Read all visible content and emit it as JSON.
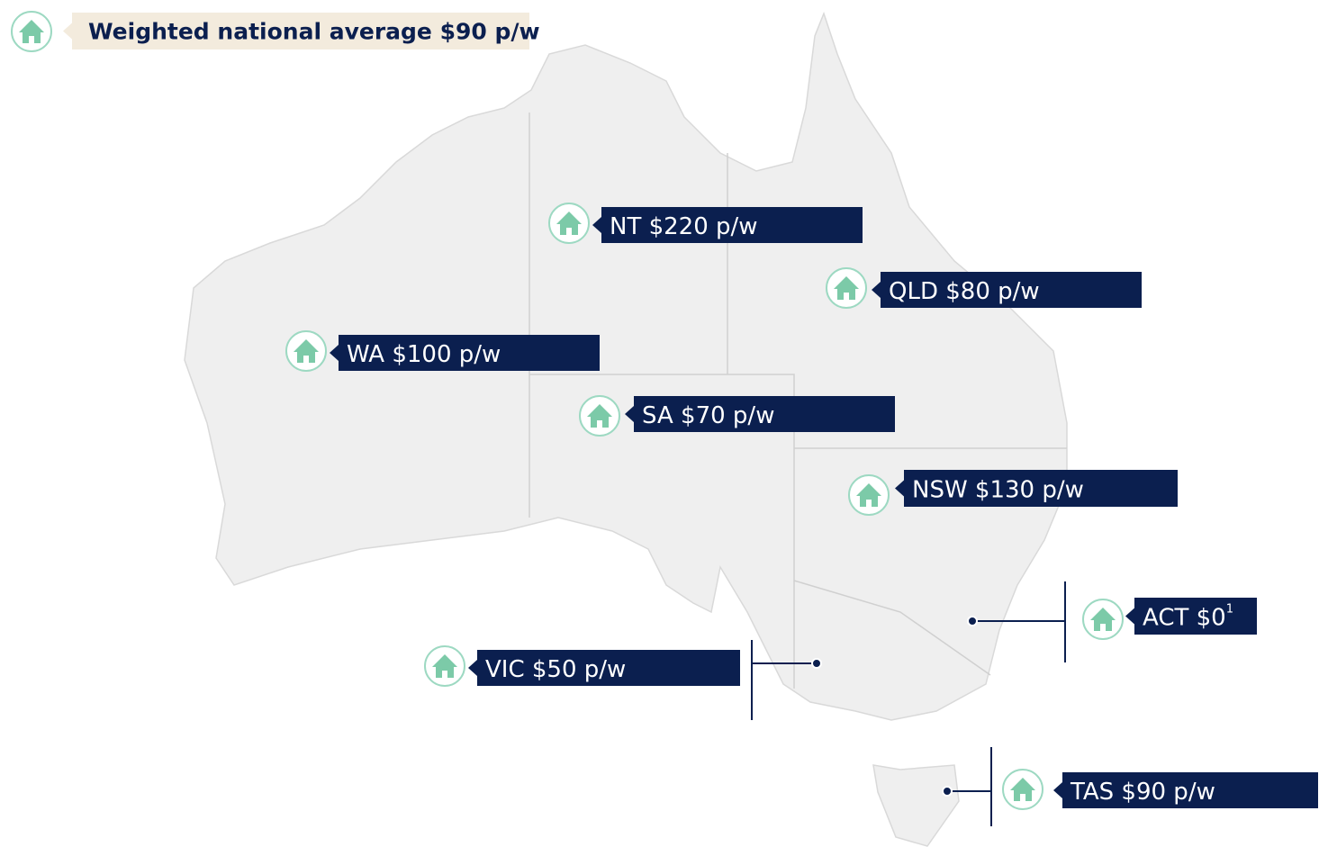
{
  "national": {
    "label": "Weighted national average $90 p/w"
  },
  "regions": [
    {
      "label": "NT $220 p/w"
    },
    {
      "label": "QLD $80 p/w"
    },
    {
      "label": "WA $100 p/w"
    },
    {
      "label": "SA $70 p/w"
    },
    {
      "label": "NSW $130 p/w"
    },
    {
      "label": "ACT $0",
      "note": "1"
    },
    {
      "label": "VIC $50 p/w"
    },
    {
      "label": "TAS $90 p/w"
    }
  ]
}
